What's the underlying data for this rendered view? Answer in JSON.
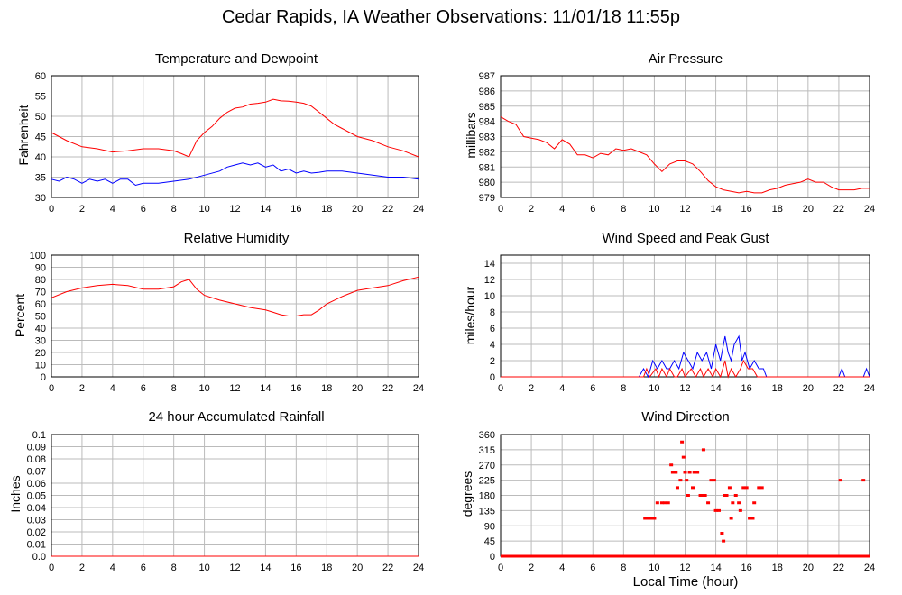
{
  "page_title": "Cedar Rapids, IA Weather Observations: 11/01/18 11:55p",
  "x_axis_label": "Local Time (hour)",
  "colors": {
    "primary_series": "#ff0000",
    "secondary_series": "#0000ff",
    "grid": "#bbbbbb"
  },
  "chart_data": [
    {
      "id": "temp",
      "type": "line",
      "title": "Temperature and Dewpoint",
      "ylabel": "Fahrenheit",
      "xlim": [
        0,
        24
      ],
      "ylim": [
        30,
        60
      ],
      "x_ticks": [
        0,
        2,
        4,
        6,
        8,
        10,
        12,
        14,
        16,
        18,
        20,
        22,
        24
      ],
      "y_ticks": [
        30,
        35,
        40,
        45,
        50,
        55,
        60
      ],
      "grid": true,
      "series": [
        {
          "color": "#ff0000",
          "x": [
            0,
            1,
            2,
            3,
            4,
            5,
            6,
            7,
            8,
            8.5,
            9,
            9.5,
            10,
            10.5,
            11,
            11.5,
            12,
            12.5,
            13,
            13.5,
            14,
            14.5,
            15,
            15.5,
            16,
            16.5,
            17,
            17.5,
            18,
            18.5,
            19,
            19.5,
            20,
            21,
            22,
            23,
            24
          ],
          "values": [
            46,
            44,
            42.5,
            42,
            41.2,
            41.5,
            42,
            42,
            41.5,
            40.8,
            40,
            44,
            46,
            47.5,
            49.5,
            51,
            52,
            52.3,
            53,
            53.2,
            53.5,
            54.2,
            53.8,
            53.7,
            53.5,
            53.2,
            52.5,
            51,
            49.5,
            48,
            47,
            46,
            45,
            44,
            42.5,
            41.5,
            40
          ]
        },
        {
          "color": "#0000ff",
          "x": [
            0,
            0.5,
            1,
            1.5,
            2,
            2.5,
            3,
            3.5,
            4,
            4.5,
            5,
            5.5,
            6,
            7,
            8,
            9,
            10,
            11,
            11.5,
            12,
            12.5,
            13,
            13.5,
            14,
            14.5,
            15,
            15.5,
            16,
            16.5,
            17,
            17.5,
            18,
            19,
            20,
            21,
            22,
            23,
            24
          ],
          "values": [
            34.5,
            34,
            35,
            34.5,
            33.5,
            34.5,
            34,
            34.5,
            33.5,
            34.5,
            34.5,
            33,
            33.5,
            33.5,
            34,
            34.5,
            35.5,
            36.5,
            37.5,
            38,
            38.5,
            38,
            38.5,
            37.5,
            38,
            36.5,
            37,
            36,
            36.5,
            36,
            36.2,
            36.5,
            36.5,
            36,
            35.5,
            35,
            35,
            34.5
          ]
        }
      ]
    },
    {
      "id": "pressure",
      "type": "line",
      "title": "Air Pressure",
      "ylabel": "millibars",
      "xlim": [
        0,
        24
      ],
      "ylim": [
        979,
        987
      ],
      "x_ticks": [
        0,
        2,
        4,
        6,
        8,
        10,
        12,
        14,
        16,
        18,
        20,
        22,
        24
      ],
      "y_ticks": [
        979,
        980,
        981,
        982,
        983,
        984,
        985,
        986,
        987
      ],
      "grid": true,
      "series": [
        {
          "color": "#ff0000",
          "x": [
            0,
            0.5,
            1,
            1.5,
            2,
            2.5,
            3,
            3.5,
            4,
            4.5,
            5,
            5.5,
            6,
            6.5,
            7,
            7.5,
            8,
            8.5,
            9,
            9.5,
            10,
            10.5,
            11,
            11.5,
            12,
            12.5,
            13,
            13.5,
            14,
            14.5,
            15,
            15.5,
            16,
            16.5,
            17,
            17.5,
            18,
            18.5,
            19,
            19.5,
            20,
            20.5,
            21,
            21.5,
            22,
            22.5,
            23,
            23.5,
            24
          ],
          "values": [
            984.3,
            984,
            983.8,
            983,
            982.9,
            982.8,
            982.6,
            982.2,
            982.8,
            982.5,
            981.8,
            981.8,
            981.6,
            981.9,
            981.8,
            982.2,
            982.1,
            982.2,
            982.0,
            981.8,
            981.2,
            980.7,
            981.2,
            981.4,
            981.4,
            981.2,
            980.7,
            980.1,
            979.7,
            979.5,
            979.4,
            979.3,
            979.4,
            979.3,
            979.3,
            979.5,
            979.6,
            979.8,
            979.9,
            980.0,
            980.2,
            980.0,
            980.0,
            979.7,
            979.5,
            979.5,
            979.5,
            979.6,
            979.6
          ]
        }
      ]
    },
    {
      "id": "humidity",
      "type": "line",
      "title": "Relative Humidity",
      "ylabel": "Percent",
      "xlim": [
        0,
        24
      ],
      "ylim": [
        0,
        100
      ],
      "x_ticks": [
        0,
        2,
        4,
        6,
        8,
        10,
        12,
        14,
        16,
        18,
        20,
        22,
        24
      ],
      "y_ticks": [
        0,
        10,
        20,
        30,
        40,
        50,
        60,
        70,
        80,
        90,
        100
      ],
      "grid": true,
      "series": [
        {
          "color": "#ff0000",
          "x": [
            0,
            1,
            2,
            3,
            4,
            5,
            6,
            7,
            8,
            8.5,
            9,
            9.5,
            10,
            11,
            12,
            13,
            14,
            14.5,
            15,
            15.5,
            16,
            16.5,
            17,
            17.5,
            18,
            19,
            20,
            21,
            22,
            23,
            24
          ],
          "values": [
            65,
            70,
            73,
            75,
            76,
            75,
            72,
            72,
            74,
            78,
            80,
            72,
            67,
            63,
            60,
            57,
            55,
            53,
            51,
            50,
            50,
            51,
            51,
            55,
            60,
            66,
            71,
            73,
            75,
            79,
            82
          ]
        }
      ]
    },
    {
      "id": "wind",
      "type": "line",
      "title": "Wind Speed and Peak Gust",
      "ylabel": "miles/hour",
      "xlim": [
        0,
        24
      ],
      "ylim": [
        0,
        15
      ],
      "x_ticks": [
        0,
        2,
        4,
        6,
        8,
        10,
        12,
        14,
        16,
        18,
        20,
        22,
        24
      ],
      "y_ticks": [
        0,
        2,
        4,
        6,
        8,
        10,
        12,
        14
      ],
      "grid": true,
      "series": [
        {
          "color": "#0000ff",
          "x": [
            0,
            9.0,
            9.3,
            9.6,
            9.9,
            10.2,
            10.5,
            10.8,
            11.0,
            11.3,
            11.6,
            11.9,
            12.2,
            12.5,
            12.8,
            13.1,
            13.4,
            13.7,
            14.0,
            14.3,
            14.6,
            14.8,
            15.0,
            15.2,
            15.5,
            15.7,
            15.9,
            16.2,
            16.5,
            16.8,
            17.1,
            17.3,
            22.0,
            22.2,
            22.4,
            23.6,
            23.8,
            24
          ],
          "values": [
            0,
            0,
            1,
            0,
            2,
            1,
            2,
            1,
            1,
            2,
            1,
            3,
            2,
            1,
            3,
            2,
            3,
            1,
            4,
            2,
            5,
            3,
            2,
            4,
            5,
            2,
            3,
            1,
            2,
            1,
            1,
            0,
            0,
            1,
            0,
            0,
            1,
            0
          ]
        },
        {
          "color": "#ff0000",
          "x": [
            0,
            9.3,
            9.5,
            9.7,
            10.1,
            10.3,
            10.5,
            10.8,
            11.0,
            11.3,
            11.5,
            11.8,
            12.0,
            12.4,
            12.7,
            13.0,
            13.2,
            13.5,
            13.8,
            14.0,
            14.3,
            14.6,
            14.8,
            15.0,
            15.3,
            15.6,
            15.8,
            16.1,
            16.4,
            16.7,
            17.0,
            24
          ],
          "values": [
            0,
            0,
            1,
            0,
            1,
            0,
            1,
            0,
            1,
            0,
            0,
            1,
            0,
            1,
            0,
            1,
            0,
            1,
            0,
            1,
            0,
            2,
            0,
            1,
            0,
            1,
            2,
            1,
            1,
            0,
            0,
            0
          ]
        }
      ]
    },
    {
      "id": "rain",
      "type": "line",
      "title": "24 hour Accumulated Rainfall",
      "ylabel": "Inches",
      "xlim": [
        0,
        24
      ],
      "ylim": [
        0,
        0.1
      ],
      "x_ticks": [
        0,
        2,
        4,
        6,
        8,
        10,
        12,
        14,
        16,
        18,
        20,
        22,
        24
      ],
      "y_ticks": [
        0.0,
        0.01,
        0.02,
        0.03,
        0.04,
        0.05,
        0.06,
        0.07,
        0.08,
        0.09,
        0.1
      ],
      "grid": true,
      "series": [
        {
          "color": "#ff0000",
          "x": [
            0,
            24
          ],
          "values": [
            0,
            0
          ]
        }
      ]
    },
    {
      "id": "direction",
      "type": "scatter",
      "title": "Wind Direction",
      "ylabel": "degrees",
      "xlabel": "Local Time (hour)",
      "xlim": [
        0,
        24
      ],
      "ylim": [
        0,
        360
      ],
      "x_ticks": [
        0,
        2,
        4,
        6,
        8,
        10,
        12,
        14,
        16,
        18,
        20,
        22,
        24
      ],
      "y_ticks": [
        0,
        45,
        90,
        135,
        180,
        225,
        270,
        315,
        360
      ],
      "grid": true,
      "series": [
        {
          "color": "#ff0000",
          "x": [
            9.4,
            9.6,
            9.8,
            10.0,
            10.2,
            10.5,
            10.7,
            10.9,
            11.1,
            11.2,
            11.4,
            11.5,
            11.7,
            11.8,
            11.9,
            12.0,
            12.1,
            12.2,
            12.3,
            12.5,
            12.6,
            12.8,
            13.0,
            13.1,
            13.3,
            13.5,
            13.7,
            13.9,
            14.0,
            14.2,
            14.4,
            14.5,
            14.6,
            14.7,
            14.9,
            15.0,
            15.1,
            15.3,
            15.5,
            15.6,
            15.8,
            16.0,
            16.2,
            16.4,
            16.5,
            16.8,
            17.0,
            22.1,
            23.6,
            11.0,
            12.4,
            13.2
          ],
          "values": [
            112,
            112,
            112,
            112,
            158,
            158,
            158,
            158,
            270,
            248,
            248,
            203,
            225,
            338,
            293,
            248,
            225,
            180,
            248,
            203,
            248,
            248,
            180,
            180,
            180,
            158,
            225,
            225,
            135,
            135,
            68,
            45,
            180,
            180,
            203,
            112,
            158,
            180,
            158,
            135,
            203,
            203,
            112,
            112,
            158,
            203,
            203,
            225,
            225,
            0,
            0,
            315
          ]
        },
        {
          "color": "#ff0000",
          "x": [
            0,
            9.1,
            17.1,
            24
          ],
          "values": [
            0,
            0,
            0,
            0
          ]
        }
      ]
    }
  ]
}
